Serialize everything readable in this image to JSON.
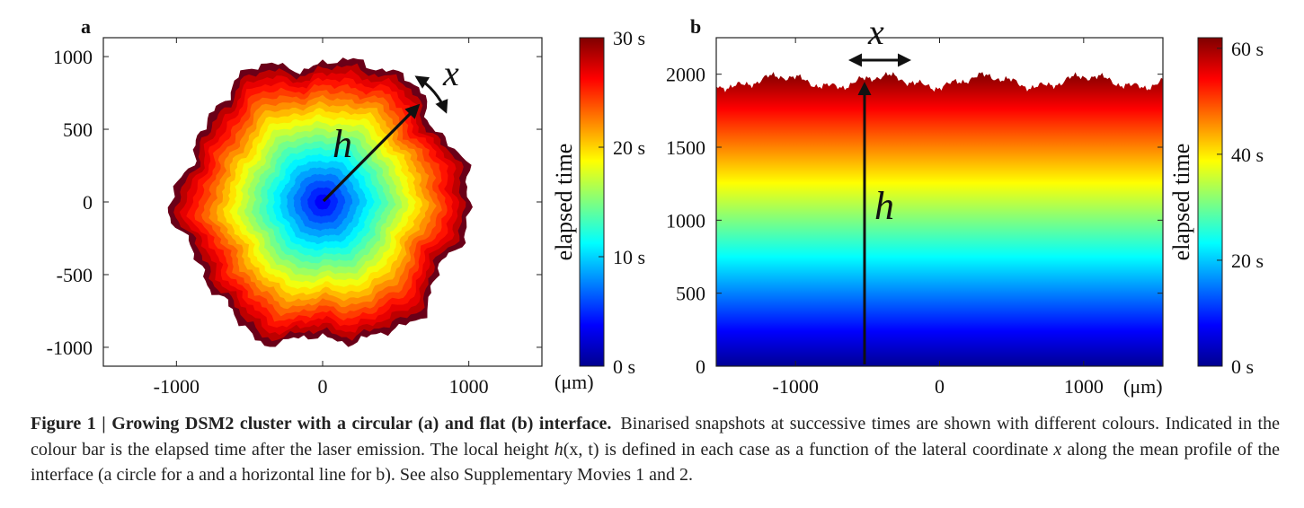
{
  "panels": [
    {
      "id": "a",
      "label": "a",
      "shape": "circular",
      "xlim": [
        -1500,
        1500
      ],
      "ylim": [
        -1130,
        1130
      ],
      "x_ticks": [
        {
          "v": -1000,
          "t": "-1000"
        },
        {
          "v": 0,
          "t": "0"
        },
        {
          "v": 1000,
          "t": "1000"
        }
      ],
      "y_ticks": [
        {
          "v": 1000,
          "t": "1000"
        },
        {
          "v": 500,
          "t": "500"
        },
        {
          "v": 0,
          "t": "0"
        },
        {
          "v": -500,
          "t": "-500"
        },
        {
          "v": -1000,
          "t": "-1000"
        }
      ],
      "unit": "(μm)",
      "h_label": "h",
      "x_label": "x",
      "colorbar": {
        "label": "elapsed time",
        "range": [
          0,
          30
        ],
        "ticks": [
          {
            "v": 0,
            "t": "0 s"
          },
          {
            "v": 10,
            "t": "10 s"
          },
          {
            "v": 20,
            "t": "20 s"
          },
          {
            "v": 30,
            "t": "30 s"
          }
        ]
      }
    },
    {
      "id": "b",
      "label": "b",
      "shape": "flat",
      "xlim": [
        -1550,
        1550
      ],
      "ylim": [
        0,
        2250
      ],
      "x_ticks": [
        {
          "v": -1000,
          "t": "-1000"
        },
        {
          "v": 0,
          "t": "0"
        },
        {
          "v": 1000,
          "t": "1000"
        }
      ],
      "y_ticks": [
        {
          "v": 2000,
          "t": "2000"
        },
        {
          "v": 1500,
          "t": "1500"
        },
        {
          "v": 1000,
          "t": "1000"
        },
        {
          "v": 500,
          "t": "500"
        },
        {
          "v": 0,
          "t": "0"
        }
      ],
      "unit": "(μm)",
      "h_label": "h",
      "x_label": "x",
      "colorbar": {
        "label": "elapsed time",
        "range": [
          0,
          62
        ],
        "ticks": [
          {
            "v": 0,
            "t": "0 s"
          },
          {
            "v": 20,
            "t": "20 s"
          },
          {
            "v": 40,
            "t": "40 s"
          },
          {
            "v": 60,
            "t": "60 s"
          }
        ]
      }
    }
  ],
  "caption": {
    "label": "Figure 1 | Growing DSM2 cluster with a circular (a) and flat (b) interface.",
    "part1": "Binarised snapshots at successive times are shown with different colours. Indicated in the colour bar is the elapsed time after the laser emission. The local height ",
    "hx": "h",
    "args": "(x, t)",
    "part2": " is defined in each case as a function of the lateral coordinate ",
    "xvar": "x",
    "part3": " along the mean profile of the interface (a circle for a and a horizontal line for b). See also Supplementary Movies 1 and 2."
  },
  "colors": {
    "jet": [
      "#00008f",
      "#0000ff",
      "#007fff",
      "#00ffff",
      "#7fff7f",
      "#ffff00",
      "#ff7f00",
      "#ff0000",
      "#7f0000"
    ],
    "outer_edge": "#6a0018"
  }
}
